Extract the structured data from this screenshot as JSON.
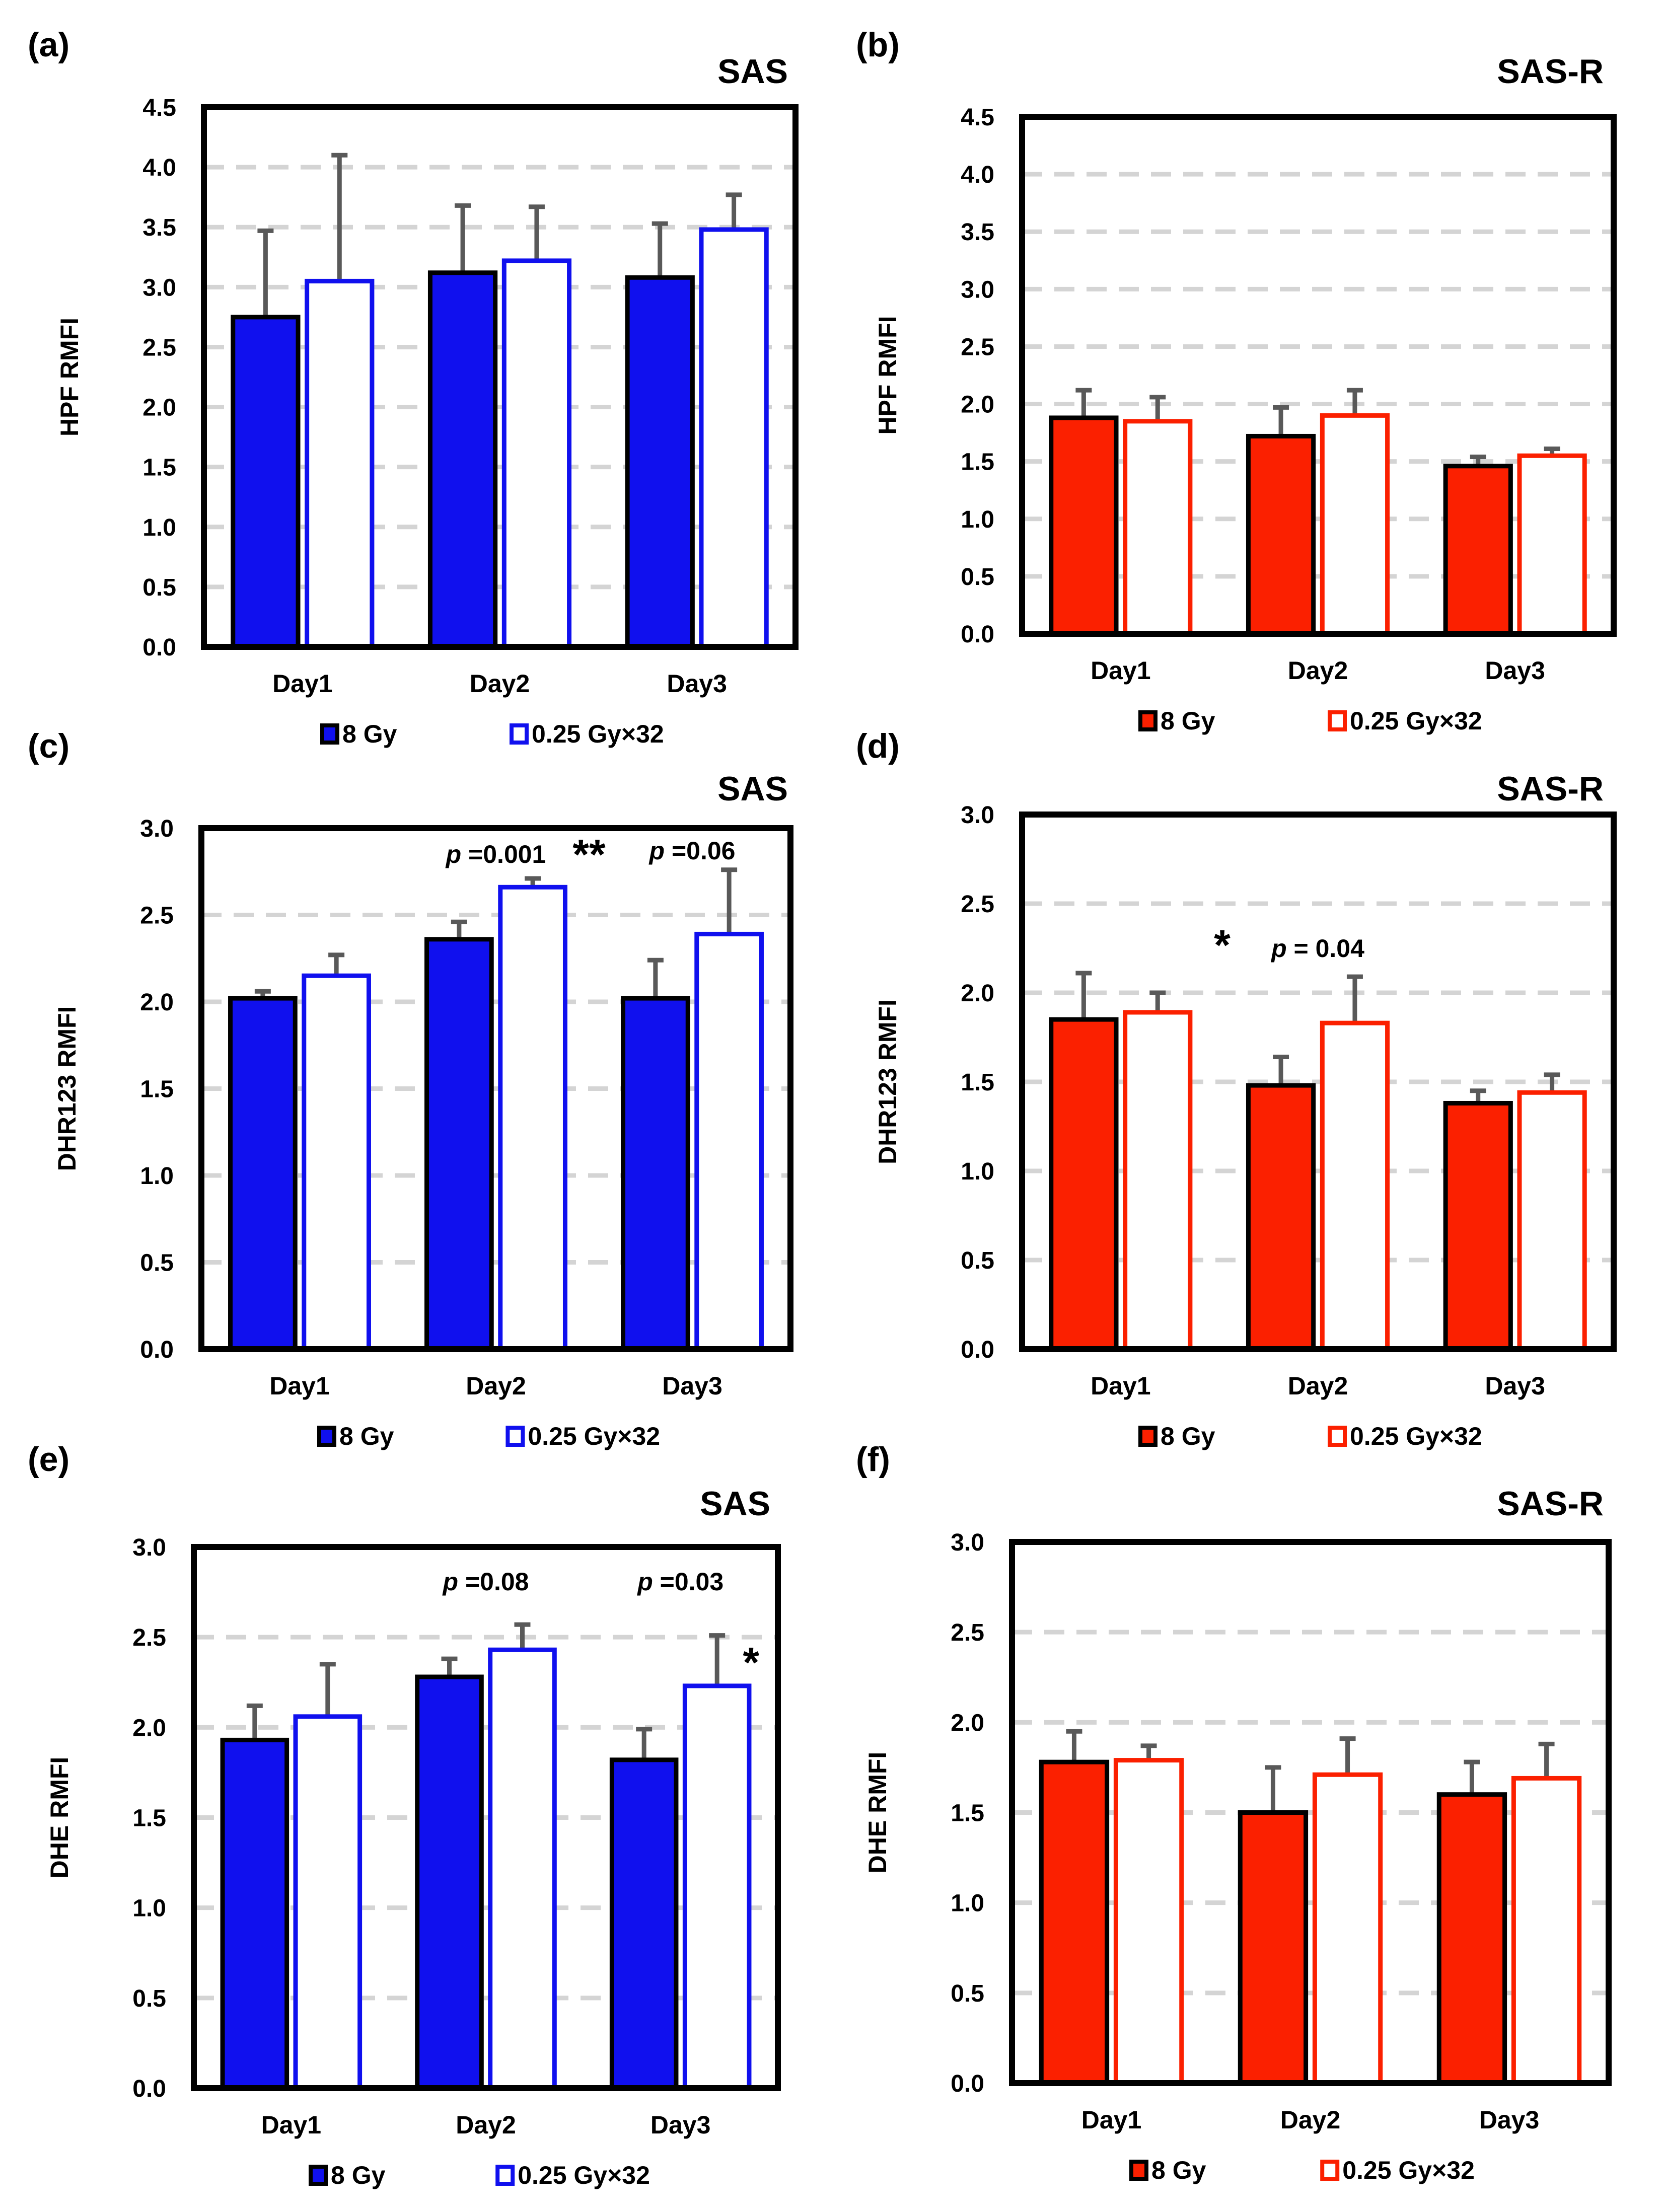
{
  "colors": {
    "sas": "#1010ee",
    "sasr": "#fb2000",
    "solid_stroke": "#000000",
    "error_bar": "#595959",
    "gridline": "#d4d4d4",
    "frame": "#000000"
  },
  "chart_data": [
    {
      "id": "a",
      "type": "bar",
      "panel_label": "(a)",
      "title": "SAS",
      "ylabel": "HPF RMFI",
      "xlabel": "",
      "ylim": [
        0,
        4.5
      ],
      "yticks": [
        "0.0",
        "0.5",
        "1.0",
        "1.5",
        "2.0",
        "2.5",
        "3.0",
        "3.5",
        "4.0",
        "4.5"
      ],
      "categories": [
        "Day1",
        "Day2",
        "Day3"
      ],
      "series": [
        {
          "name": "8 Gy",
          "style": "solid",
          "values": [
            2.75,
            3.12,
            3.08
          ],
          "errors": [
            0.72,
            0.56,
            0.45
          ]
        },
        {
          "name": "0.25 Gy×32",
          "style": "open",
          "values": [
            3.05,
            3.22,
            3.48
          ],
          "errors": [
            1.05,
            0.45,
            0.29
          ]
        }
      ],
      "legend": [
        "8 Gy",
        "0.25 Gy×32"
      ],
      "legend_position": "bottom",
      "grid": true,
      "annotations": []
    },
    {
      "id": "b",
      "type": "bar",
      "panel_label": "(b)",
      "title": "SAS-R",
      "ylabel": "HPF RMFI",
      "xlabel": "",
      "ylim": [
        0,
        4.5
      ],
      "yticks": [
        "0.0",
        "0.5",
        "1.0",
        "1.5",
        "2.0",
        "2.5",
        "3.0",
        "3.5",
        "4.0",
        "4.5"
      ],
      "categories": [
        "Day1",
        "Day2",
        "Day3"
      ],
      "series": [
        {
          "name": "8 Gy",
          "style": "solid",
          "values": [
            1.88,
            1.72,
            1.46
          ],
          "errors": [
            0.24,
            0.25,
            0.08
          ]
        },
        {
          "name": "0.25 Gy×32",
          "style": "open",
          "values": [
            1.85,
            1.9,
            1.55
          ],
          "errors": [
            0.21,
            0.22,
            0.06
          ]
        }
      ],
      "legend": [
        "8 Gy",
        "0.25 Gy×32"
      ],
      "legend_position": "bottom",
      "grid": true,
      "annotations": []
    },
    {
      "id": "c",
      "type": "bar",
      "panel_label": "(c)",
      "title": "SAS",
      "ylabel": "DHR123 RMFI",
      "xlabel": "",
      "ylim": [
        0,
        3.0
      ],
      "yticks": [
        "0.0",
        "0.5",
        "1.0",
        "1.5",
        "2.0",
        "2.5",
        "3.0"
      ],
      "categories": [
        "Day1",
        "Day2",
        "Day3"
      ],
      "series": [
        {
          "name": "8 Gy",
          "style": "solid",
          "values": [
            2.02,
            2.36,
            2.02
          ],
          "errors": [
            0.04,
            0.1,
            0.22
          ]
        },
        {
          "name": "0.25 Gy×32",
          "style": "open",
          "values": [
            2.15,
            2.66,
            2.39
          ],
          "errors": [
            0.12,
            0.05,
            0.37
          ]
        }
      ],
      "legend": [
        "8 Gy",
        "0.25 Gy×32"
      ],
      "legend_position": "bottom",
      "grid": true,
      "annotations": [
        {
          "p_label": "p",
          "p_value": "=0.001",
          "stars": "**",
          "category": 1,
          "height": 2.8
        },
        {
          "p_label": "p",
          "p_value": "=0.06",
          "stars": "",
          "category": 2,
          "height": 2.82
        }
      ]
    },
    {
      "id": "d",
      "type": "bar",
      "panel_label": "(d)",
      "title": "SAS-R",
      "ylabel": "DHR123 RMFI",
      "xlabel": "",
      "ylim": [
        0,
        3.0
      ],
      "yticks": [
        "0.0",
        "0.5",
        "1.0",
        "1.5",
        "2.0",
        "2.5",
        "3.0"
      ],
      "categories": [
        "Day1",
        "Day2",
        "Day3"
      ],
      "series": [
        {
          "name": "8 Gy",
          "style": "solid",
          "values": [
            1.85,
            1.48,
            1.38
          ],
          "errors": [
            0.26,
            0.16,
            0.07
          ]
        },
        {
          "name": "0.25 Gy×32",
          "style": "open",
          "values": [
            1.89,
            1.83,
            1.44
          ],
          "errors": [
            0.11,
            0.26,
            0.1
          ]
        }
      ],
      "legend": [
        "8 Gy",
        "0.25 Gy×32"
      ],
      "legend_position": "bottom",
      "grid": true,
      "annotations": [
        {
          "p_label": "p",
          "p_value": "= 0.04",
          "stars": "*",
          "category": 1,
          "height": 2.2
        }
      ]
    },
    {
      "id": "e",
      "type": "bar",
      "panel_label": "(e)",
      "title": "SAS",
      "ylabel": "DHE RMFI",
      "xlabel": "",
      "ylim": [
        0,
        3.0
      ],
      "yticks": [
        "0.0",
        "0.5",
        "1.0",
        "1.5",
        "2.0",
        "2.5",
        "3.0"
      ],
      "categories": [
        "Day1",
        "Day2",
        "Day3"
      ],
      "series": [
        {
          "name": "8 Gy",
          "style": "solid",
          "values": [
            1.93,
            2.28,
            1.82
          ],
          "errors": [
            0.19,
            0.1,
            0.17
          ]
        },
        {
          "name": "0.25 Gy×32",
          "style": "open",
          "values": [
            2.06,
            2.43,
            2.23
          ],
          "errors": [
            0.29,
            0.14,
            0.28
          ]
        }
      ],
      "legend": [
        "8 Gy",
        "0.25 Gy×32"
      ],
      "legend_position": "bottom",
      "grid": true,
      "annotations": [
        {
          "p_label": "p",
          "p_value": "=0.08",
          "stars": "",
          "category": 1,
          "height": 2.76
        },
        {
          "p_label": "p",
          "p_value": "=0.03",
          "stars": "*",
          "category": 2,
          "height": 2.76
        }
      ]
    },
    {
      "id": "f",
      "type": "bar",
      "panel_label": "(f)",
      "title": "SAS-R",
      "ylabel": "DHE RMFI",
      "xlabel": "",
      "ylim": [
        0,
        3.0
      ],
      "yticks": [
        "0.0",
        "0.5",
        "1.0",
        "1.5",
        "2.0",
        "2.5",
        "3.0"
      ],
      "categories": [
        "Day1",
        "Day2",
        "Day3"
      ],
      "series": [
        {
          "name": "8 Gy",
          "style": "solid",
          "values": [
            1.78,
            1.5,
            1.6
          ],
          "errors": [
            0.17,
            0.25,
            0.18
          ]
        },
        {
          "name": "0.25 Gy×32",
          "style": "open",
          "values": [
            1.79,
            1.71,
            1.69
          ],
          "errors": [
            0.08,
            0.2,
            0.19
          ]
        }
      ],
      "legend": [
        "8 Gy",
        "0.25 Gy×32"
      ],
      "legend_position": "bottom",
      "grid": true,
      "annotations": []
    }
  ]
}
